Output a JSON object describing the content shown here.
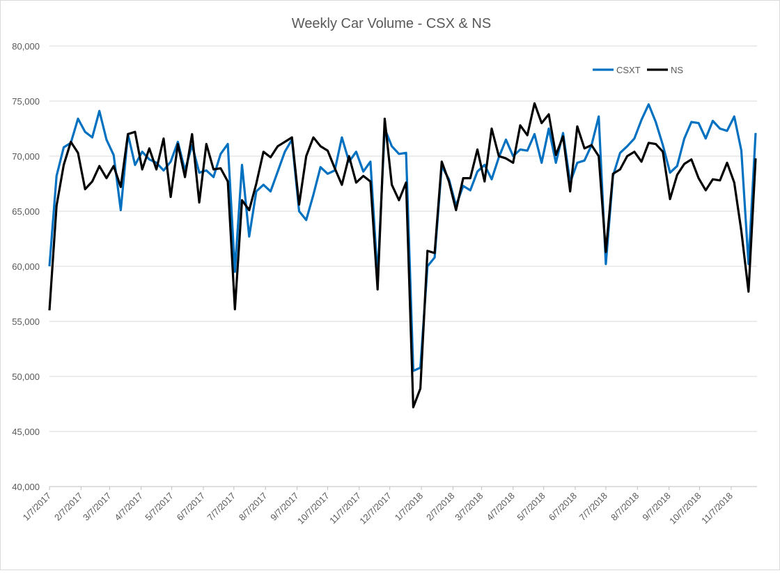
{
  "chart_data": {
    "type": "line",
    "title": "Weekly Car Volume - CSX & NS",
    "xlabel": "",
    "ylabel": "",
    "ylim": [
      40000,
      80000
    ],
    "yticks": [
      40000,
      45000,
      50000,
      55000,
      60000,
      65000,
      70000,
      75000,
      80000
    ],
    "ytick_labels": [
      "40,000",
      "45,000",
      "50,000",
      "55,000",
      "60,000",
      "65,000",
      "70,000",
      "75,000",
      "80,000"
    ],
    "x_start": "1/7/2017",
    "x_interval": "weekly",
    "xtick_labels": [
      "1/7/2017",
      "2/7/2017",
      "3/7/2017",
      "4/7/2017",
      "5/7/2017",
      "6/7/2017",
      "7/7/2017",
      "8/7/2017",
      "9/7/2017",
      "10/7/2017",
      "11/7/2017",
      "12/7/2017",
      "1/7/2018",
      "2/7/2018",
      "3/7/2018",
      "4/7/2018",
      "5/7/2018",
      "6/7/2018",
      "7/7/2018",
      "8/7/2018",
      "9/7/2018",
      "10/7/2018",
      "11/7/2018"
    ],
    "grid": true,
    "legend_position": "top-right",
    "series": [
      {
        "name": "CSXT",
        "color": "#0070c0",
        "values": [
          60000,
          68200,
          70800,
          71200,
          73400,
          72200,
          71700,
          74100,
          71500,
          70100,
          65100,
          72000,
          69200,
          70400,
          69700,
          69400,
          68700,
          69500,
          71300,
          68700,
          71000,
          68500,
          68700,
          68100,
          70200,
          71100,
          59500,
          69200,
          62700,
          66800,
          67400,
          66800,
          68600,
          70400,
          71500,
          65000,
          64200,
          66500,
          69000,
          68400,
          68700,
          71700,
          69500,
          70400,
          68600,
          69500,
          59000,
          72500,
          70900,
          70200,
          70300,
          50500,
          50800,
          60000,
          60800,
          69100,
          67900,
          65500,
          67300,
          66900,
          68600,
          69200,
          67900,
          69900,
          71500,
          70000,
          70600,
          70500,
          72000,
          69400,
          72500,
          69400,
          72100,
          67600,
          69400,
          69600,
          71000,
          73600,
          60200,
          68200,
          70300,
          70900,
          71600,
          73300,
          74700,
          73100,
          71000,
          68500,
          69100,
          71600,
          73100,
          73000,
          71600,
          73200,
          72500,
          72300,
          73600,
          70500,
          60200,
          72100
        ]
      },
      {
        "name": "NS",
        "color": "#000000",
        "values": [
          56000,
          65500,
          69200,
          71300,
          70300,
          67000,
          67700,
          69100,
          68000,
          69100,
          67200,
          72000,
          72200,
          68800,
          70700,
          68800,
          71600,
          66300,
          71100,
          68100,
          72000,
          65800,
          71100,
          68800,
          68900,
          67700,
          56100,
          66000,
          65100,
          67500,
          70400,
          69900,
          70900,
          71300,
          71700,
          65600,
          70000,
          71700,
          70900,
          70500,
          68900,
          67400,
          70000,
          67600,
          68200,
          67700,
          57900,
          73400,
          67400,
          66000,
          67600,
          47200,
          48900,
          61400,
          61200,
          69500,
          67700,
          65100,
          68000,
          68000,
          70600,
          67700,
          72500,
          70000,
          69800,
          69400,
          72800,
          71900,
          74800,
          73000,
          73800,
          70100,
          71800,
          66800,
          72700,
          70700,
          71000,
          70000,
          61300,
          68400,
          68800,
          70000,
          70400,
          69500,
          71200,
          71100,
          70400,
          66100,
          68300,
          69300,
          69700,
          68000,
          66900,
          67900,
          67800,
          69400,
          67600,
          63200,
          57700,
          69800
        ]
      }
    ]
  }
}
